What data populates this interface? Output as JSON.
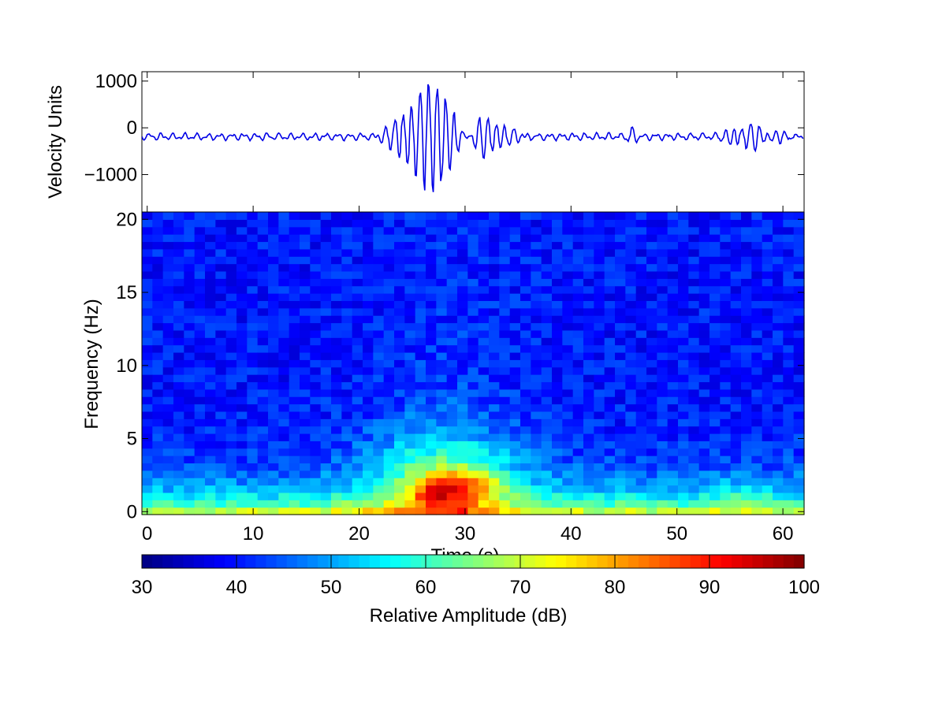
{
  "chart_data": [
    {
      "id": "seismogram",
      "type": "line",
      "ylabel": "Velocity Units",
      "xlim": [
        -0.5,
        62
      ],
      "ylim": [
        -1800,
        1200
      ],
      "yticks": [
        1000,
        0,
        -1000
      ],
      "ytick_labels": [
        "1000",
        "0",
        "−1000"
      ],
      "line_color": "#0000e6",
      "sample_rate_hz": 10,
      "baseline": -190,
      "noise_amplitude": 90,
      "bursts": [
        {
          "start_s": 21.5,
          "end_s": 30.5,
          "amplitude": 1300,
          "peak_s": 27.0
        },
        {
          "start_s": 30.5,
          "end_s": 36.0,
          "amplitude": 500,
          "peak_s": 31.5
        },
        {
          "start_s": 45.0,
          "end_s": 46.5,
          "amplitude": 180,
          "peak_s": 45.7
        },
        {
          "start_s": 53.0,
          "end_s": 62.0,
          "amplitude": 260,
          "peak_s": 56.5
        }
      ]
    },
    {
      "id": "spectrogram",
      "type": "heatmap",
      "xlabel": "Time (s)",
      "ylabel": "Frequency (Hz)",
      "xlim": [
        -0.5,
        62
      ],
      "ylim": [
        -0.2,
        20.5
      ],
      "xticks": [
        0,
        10,
        20,
        30,
        40,
        50,
        60
      ],
      "yticks": [
        0,
        5,
        10,
        15,
        20
      ],
      "time_bins": 63,
      "frequency_bins": 41,
      "colormap": "jet",
      "clim_db": [
        30,
        100
      ],
      "energy_peaks": [
        {
          "time_s": 27.5,
          "freq_hz": 1.5,
          "db": 98
        },
        {
          "time_s": 31,
          "freq_hz": 2,
          "db": 88
        },
        {
          "time_s": 56,
          "freq_hz": 1,
          "db": 80
        }
      ]
    },
    {
      "id": "colorbar",
      "type": "colorbar",
      "label": "Relative Amplitude  (dB)",
      "range": [
        30,
        100
      ],
      "ticks": [
        30,
        40,
        50,
        60,
        70,
        80,
        90,
        100
      ]
    }
  ]
}
